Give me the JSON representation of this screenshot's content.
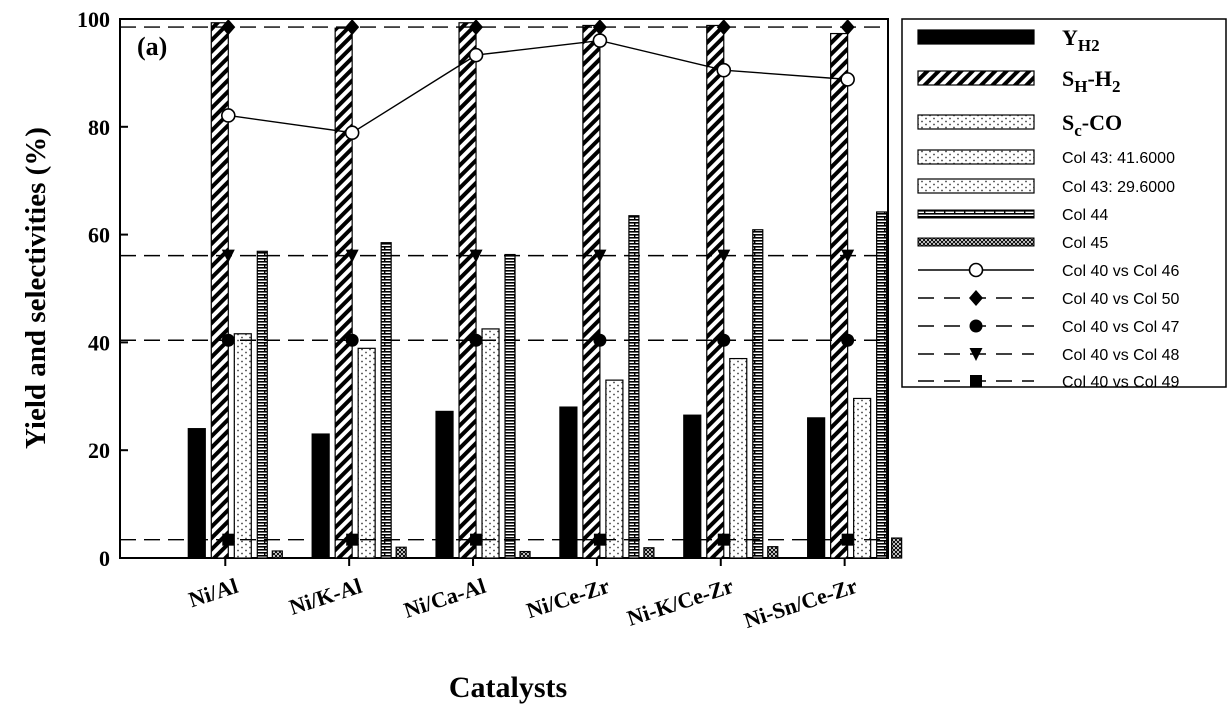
{
  "chart_data": {
    "type": "bar",
    "panel_label": "(a)",
    "xlabel": "Catalysts",
    "ylabel": "Yield and selectivities (%)",
    "ylim": [
      0,
      100
    ],
    "yticks": [
      0,
      20,
      40,
      60,
      80,
      100
    ],
    "grid": false,
    "legend_position": "right",
    "categories": [
      "Ni/Al",
      "Ni/K-Al",
      "Ni/Ca-Al",
      "Ni/Ce-Zr",
      "Ni-K/Ce-Zr",
      "Ni-Sn/Ce-Zr"
    ],
    "bar_series": [
      {
        "name": "Y_H2",
        "legend_main": "Y",
        "legend_sub": "H2",
        "pattern": "solid",
        "values": [
          24.0,
          23.0,
          27.2,
          28.0,
          26.5,
          26.0
        ]
      },
      {
        "name": "S_H-H2",
        "legend_main": "S",
        "legend_sub": "H",
        "legend_tail": "-H",
        "legend_tail_sub": "2",
        "pattern": "hatch",
        "values": [
          99.3,
          98.3,
          99.3,
          98.8,
          98.8,
          97.3
        ]
      },
      {
        "name": "S_c-CO",
        "legend_main": "S",
        "legend_sub": "c",
        "legend_tail": "-CO",
        "pattern": "dots",
        "values": [
          41.6,
          38.9,
          42.5,
          33.0,
          37.0,
          29.6
        ]
      },
      {
        "name": "Col 44",
        "pattern": "brick",
        "values": [
          56.9,
          58.5,
          56.3,
          63.5,
          60.9,
          64.2
        ]
      },
      {
        "name": "Col 45",
        "pattern": "crosshatch",
        "values": [
          1.3,
          2.0,
          1.2,
          1.9,
          2.1,
          3.7
        ]
      }
    ],
    "line_series": [
      {
        "name": "Col 40 vs Col 46",
        "marker": "open-circle",
        "linestyle": "solid",
        "values": [
          82.1,
          78.9,
          93.3,
          96.0,
          90.5,
          88.8
        ]
      },
      {
        "name": "Col 40 vs Col 50",
        "marker": "diamond",
        "linestyle": "dashed",
        "values": [
          98.5,
          98.5,
          98.5,
          98.5,
          98.5,
          98.5
        ]
      },
      {
        "name": "Col 40 vs Col 47",
        "marker": "circle",
        "linestyle": "dashed",
        "values": [
          40.4,
          40.4,
          40.4,
          40.4,
          40.4,
          40.4
        ]
      },
      {
        "name": "Col 40 vs Col 48",
        "marker": "triangle-down",
        "linestyle": "dashed",
        "values": [
          56.1,
          56.1,
          56.1,
          56.1,
          56.1,
          56.1
        ]
      },
      {
        "name": "Col 40 vs Col 49",
        "marker": "square",
        "linestyle": "dashed",
        "values": [
          3.4,
          3.4,
          3.4,
          3.4,
          3.4,
          3.4
        ]
      }
    ],
    "legend": [
      {
        "label": "Y",
        "sub": "H2",
        "kind": "bar",
        "pattern": "solid",
        "style": "bold"
      },
      {
        "label": "S",
        "sub": "H",
        "tail": "-H",
        "tail_sub": "2",
        "kind": "bar",
        "pattern": "hatch",
        "style": "bold"
      },
      {
        "label": "S",
        "sub": "c",
        "tail": "-CO",
        "kind": "bar",
        "pattern": "dots",
        "style": "bold"
      },
      {
        "label": "Col 43: 41.6000",
        "kind": "bar",
        "pattern": "dots",
        "style": "plain"
      },
      {
        "label": "Col 43: 29.6000",
        "kind": "bar",
        "pattern": "dots",
        "style": "plain"
      },
      {
        "label": "Col 44",
        "kind": "bar-thin",
        "pattern": "brick",
        "style": "plain"
      },
      {
        "label": "Col 45",
        "kind": "bar-thin",
        "pattern": "crosshatch",
        "style": "plain"
      },
      {
        "label": "Col 40 vs Col 46",
        "kind": "line",
        "marker": "open-circle",
        "dashed": false,
        "style": "plain"
      },
      {
        "label": "Col 40 vs Col 50",
        "kind": "line",
        "marker": "diamond",
        "dashed": true,
        "style": "plain"
      },
      {
        "label": "Col 40 vs Col 47",
        "kind": "line",
        "marker": "circle",
        "dashed": true,
        "style": "plain"
      },
      {
        "label": "Col 40 vs Col 48",
        "kind": "line",
        "marker": "triangle-down",
        "dashed": true,
        "style": "plain"
      },
      {
        "label": "Col 40 vs Col 49",
        "kind": "line",
        "marker": "square",
        "dashed": true,
        "style": "plain"
      }
    ]
  }
}
